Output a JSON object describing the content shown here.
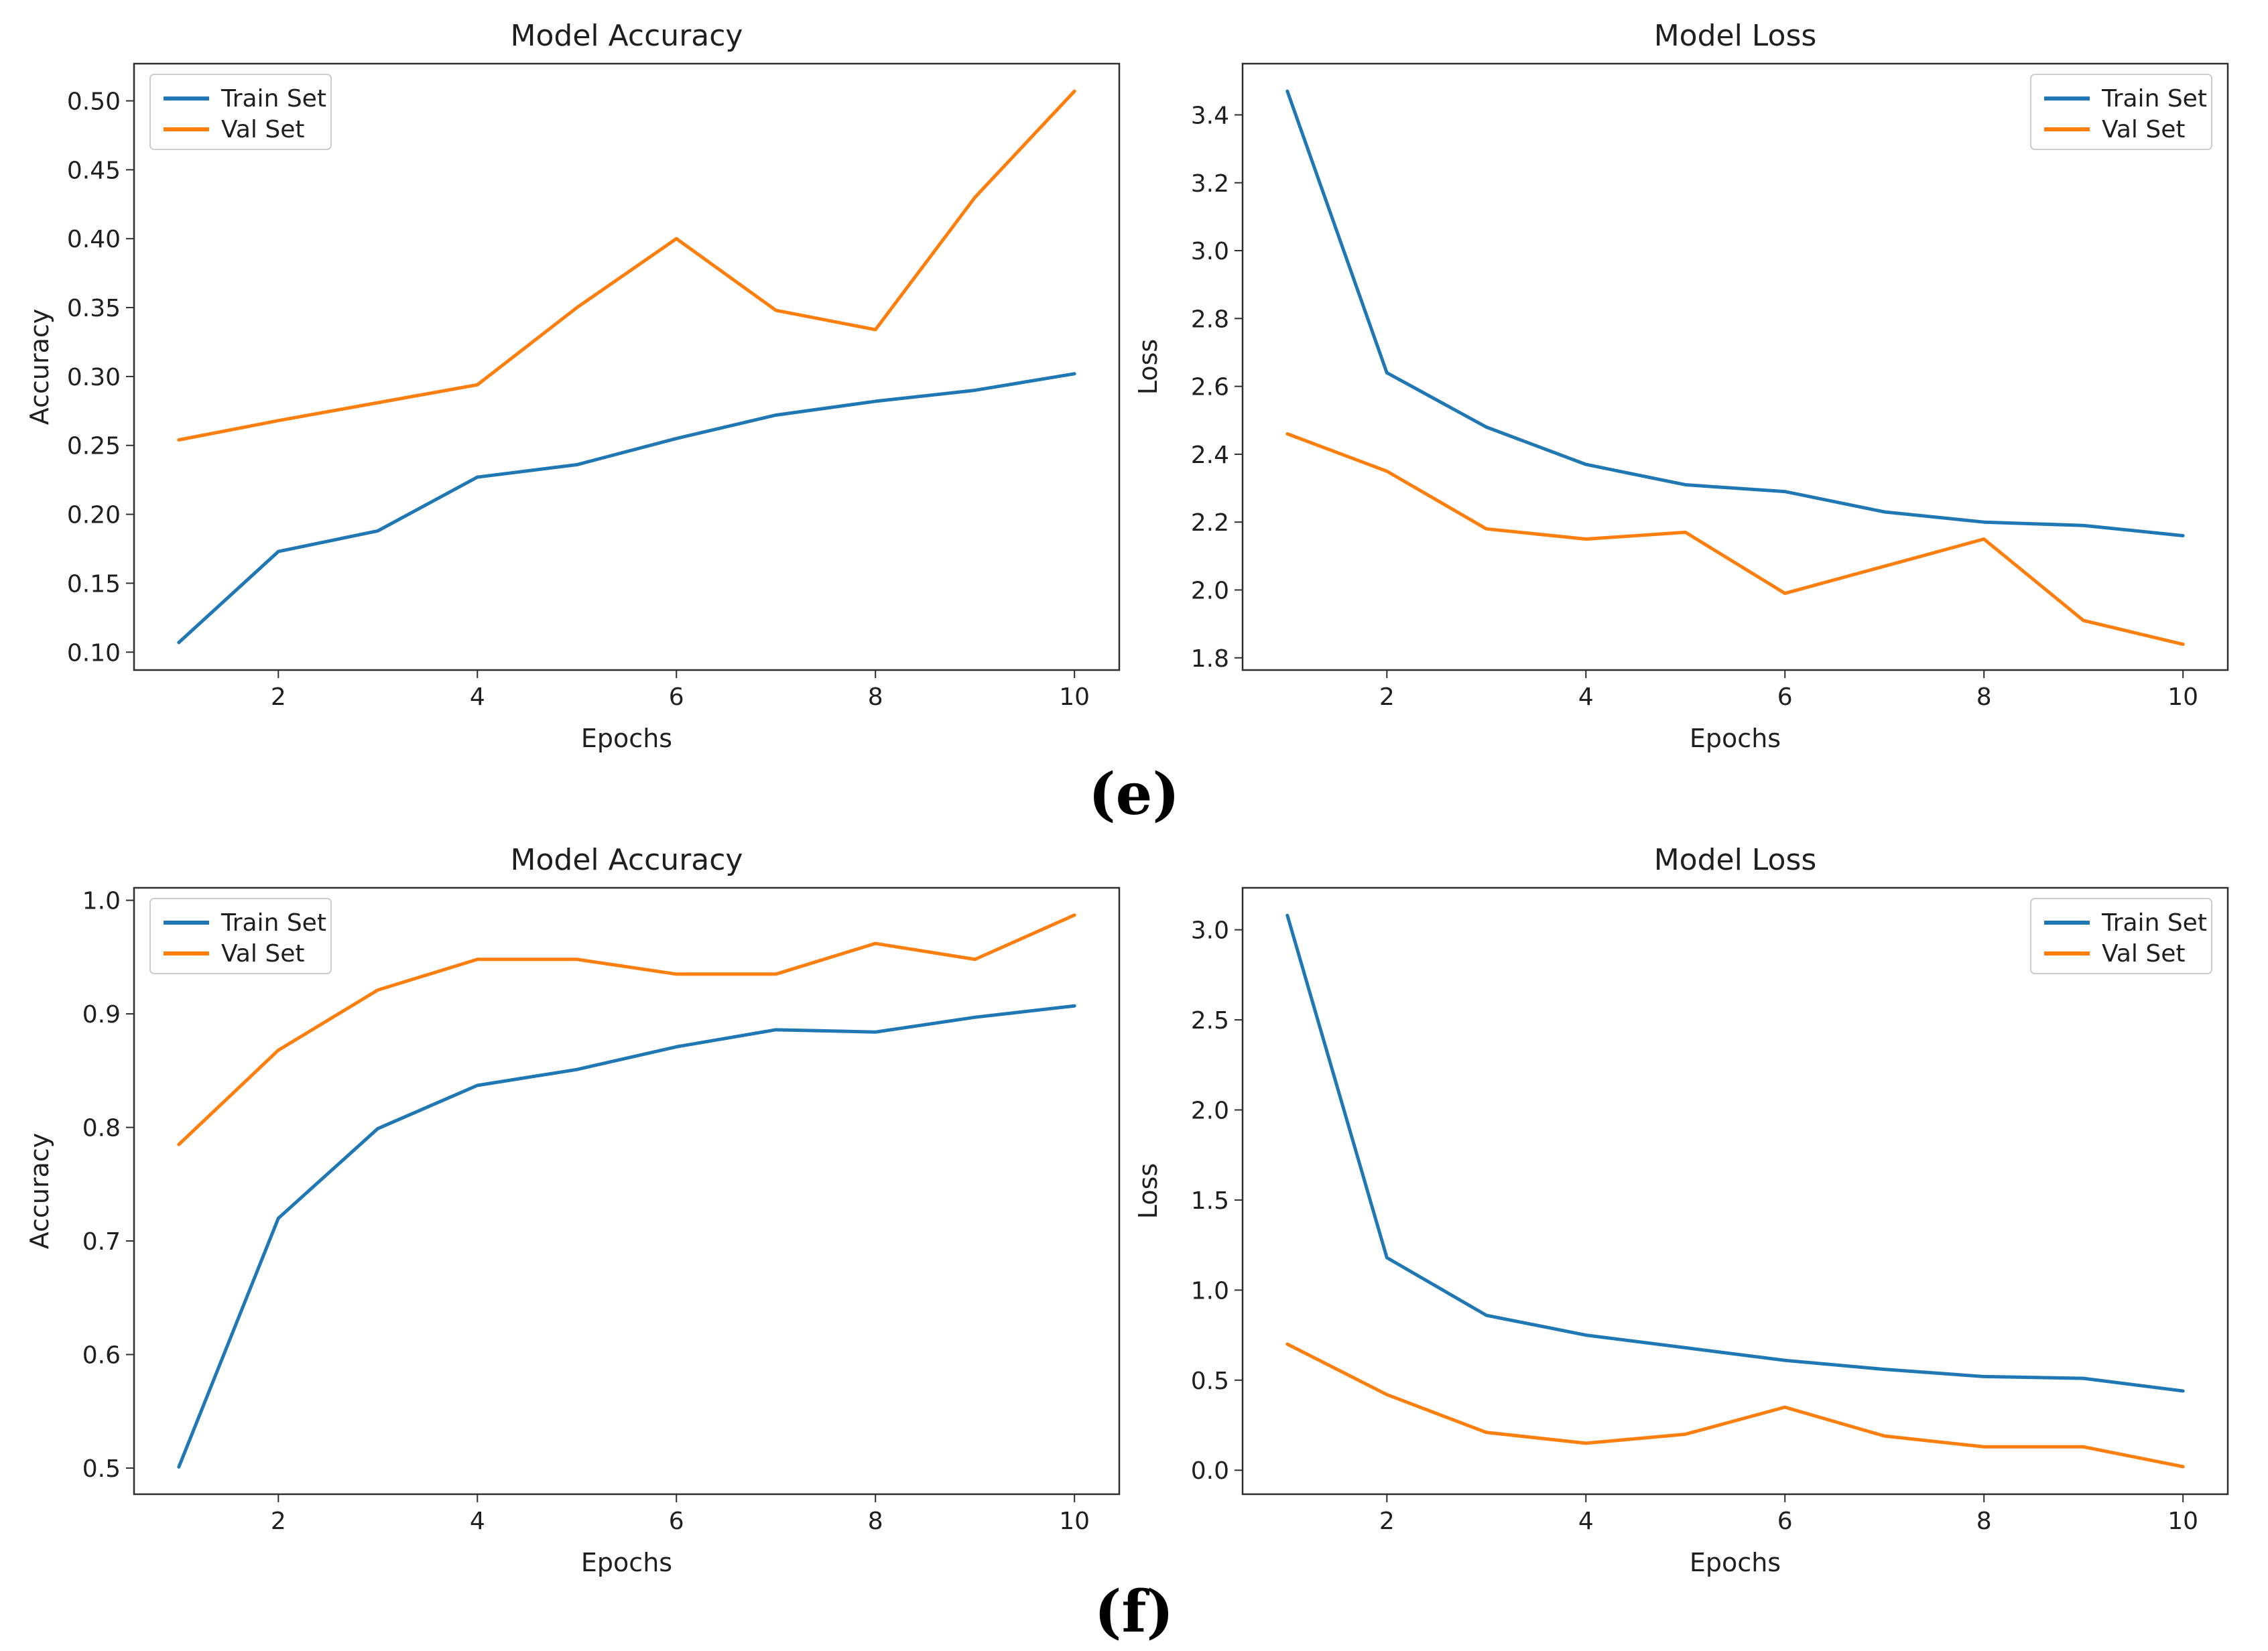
{
  "captions": {
    "e": "(e)",
    "f": "(f)"
  },
  "colors": {
    "train": "#1f77b4",
    "val": "#ff7f0e",
    "spine": "#2e2e2e",
    "text": "#1f1f1f",
    "legend_border": "#cccccc",
    "background": "#ffffff"
  },
  "legend": {
    "train_label": "Train Set",
    "val_label": "Val Set"
  },
  "chart_data": [
    {
      "id": "model-accuracy-e",
      "type": "line",
      "title": "Model Accuracy",
      "xlabel": "Epochs",
      "ylabel": "Accuracy",
      "x": [
        1,
        2,
        3,
        4,
        5,
        6,
        7,
        8,
        9,
        10
      ],
      "series": [
        {
          "name": "Train Set",
          "color": "#1f77b4",
          "values": [
            0.107,
            0.173,
            0.188,
            0.227,
            0.236,
            0.255,
            0.272,
            0.282,
            0.29,
            0.302
          ]
        },
        {
          "name": "Val Set",
          "color": "#ff7f0e",
          "values": [
            0.254,
            0.268,
            0.281,
            0.294,
            0.35,
            0.4,
            0.348,
            0.334,
            0.43,
            0.507
          ]
        }
      ],
      "xlim": [
        0.55,
        10.45
      ],
      "ylim": [
        0.087,
        0.527
      ],
      "xticks": [
        2,
        4,
        6,
        8,
        10
      ],
      "xtick_labels": [
        "2",
        "4",
        "6",
        "8",
        "10"
      ],
      "yticks": [
        0.1,
        0.15,
        0.2,
        0.25,
        0.3,
        0.35,
        0.4,
        0.45,
        0.5
      ],
      "ytick_labels": [
        "0.10",
        "0.15",
        "0.20",
        "0.25",
        "0.30",
        "0.35",
        "0.40",
        "0.45",
        "0.50"
      ],
      "legend_position": "upper-left",
      "grid": false
    },
    {
      "id": "model-loss-e",
      "type": "line",
      "title": "Model Loss",
      "xlabel": "Epochs",
      "ylabel": "Loss",
      "x": [
        1,
        2,
        3,
        4,
        5,
        6,
        7,
        8,
        9,
        10
      ],
      "series": [
        {
          "name": "Train Set",
          "color": "#1f77b4",
          "values": [
            3.47,
            2.64,
            2.48,
            2.37,
            2.31,
            2.29,
            2.23,
            2.2,
            2.19,
            2.16
          ]
        },
        {
          "name": "Val Set",
          "color": "#ff7f0e",
          "values": [
            2.46,
            2.35,
            2.18,
            2.15,
            2.17,
            1.99,
            2.07,
            2.15,
            1.91,
            1.84
          ]
        }
      ],
      "xlim": [
        0.55,
        10.45
      ],
      "ylim": [
        1.764,
        3.551
      ],
      "xticks": [
        2,
        4,
        6,
        8,
        10
      ],
      "xtick_labels": [
        "2",
        "4",
        "6",
        "8",
        "10"
      ],
      "yticks": [
        1.8,
        2.0,
        2.2,
        2.4,
        2.6,
        2.8,
        3.0,
        3.2,
        3.4
      ],
      "ytick_labels": [
        "1.8",
        "2.0",
        "2.2",
        "2.4",
        "2.6",
        "2.8",
        "3.0",
        "3.2",
        "3.4"
      ],
      "legend_position": "upper-right",
      "grid": false
    },
    {
      "id": "model-accuracy-f",
      "type": "line",
      "title": "Model Accuracy",
      "xlabel": "Epochs",
      "ylabel": "Accuracy",
      "x": [
        1,
        2,
        3,
        4,
        5,
        6,
        7,
        8,
        9,
        10
      ],
      "series": [
        {
          "name": "Train Set",
          "color": "#1f77b4",
          "values": [
            0.501,
            0.72,
            0.799,
            0.837,
            0.851,
            0.871,
            0.886,
            0.884,
            0.897,
            0.907
          ]
        },
        {
          "name": "Val Set",
          "color": "#ff7f0e",
          "values": [
            0.785,
            0.868,
            0.921,
            0.948,
            0.948,
            0.935,
            0.935,
            0.962,
            0.948,
            0.987
          ]
        }
      ],
      "xlim": [
        0.55,
        10.45
      ],
      "ylim": [
        0.477,
        1.011
      ],
      "xticks": [
        2,
        4,
        6,
        8,
        10
      ],
      "xtick_labels": [
        "2",
        "4",
        "6",
        "8",
        "10"
      ],
      "yticks": [
        0.5,
        0.6,
        0.7,
        0.8,
        0.9,
        1.0
      ],
      "ytick_labels": [
        "0.5",
        "0.6",
        "0.7",
        "0.8",
        "0.9",
        "1.0"
      ],
      "legend_position": "upper-left",
      "grid": false
    },
    {
      "id": "model-loss-f",
      "type": "line",
      "title": "Model Loss",
      "xlabel": "Epochs",
      "ylabel": "Loss",
      "x": [
        1,
        2,
        3,
        4,
        5,
        6,
        7,
        8,
        9,
        10
      ],
      "series": [
        {
          "name": "Train Set",
          "color": "#1f77b4",
          "values": [
            3.08,
            1.18,
            0.86,
            0.75,
            0.68,
            0.61,
            0.56,
            0.52,
            0.51,
            0.44
          ]
        },
        {
          "name": "Val Set",
          "color": "#ff7f0e",
          "values": [
            0.7,
            0.42,
            0.21,
            0.15,
            0.2,
            0.35,
            0.19,
            0.13,
            0.13,
            0.02
          ]
        }
      ],
      "xlim": [
        0.55,
        10.45
      ],
      "ylim": [
        -0.133,
        3.233
      ],
      "xticks": [
        2,
        4,
        6,
        8,
        10
      ],
      "xtick_labels": [
        "2",
        "4",
        "6",
        "8",
        "10"
      ],
      "yticks": [
        0.0,
        0.5,
        1.0,
        1.5,
        2.0,
        2.5,
        3.0
      ],
      "ytick_labels": [
        "0.0",
        "0.5",
        "1.0",
        "1.5",
        "2.0",
        "2.5",
        "3.0"
      ],
      "legend_position": "upper-right",
      "grid": false
    }
  ]
}
